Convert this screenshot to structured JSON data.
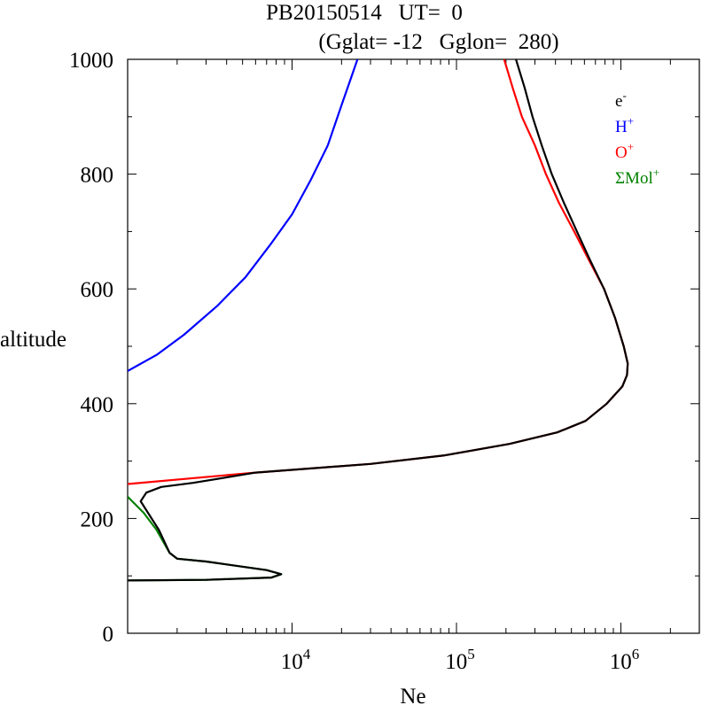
{
  "chart_data": {
    "type": "line",
    "title_line1": "PB20150514   UT=  0",
    "title_line2": "(Gglat= -12   Gglon=  280)",
    "xlabel": "Ne",
    "ylabel": "altitude",
    "xscale": "log",
    "xlim": [
      1000,
      3000000
    ],
    "ylim": [
      0,
      1000
    ],
    "x_ticks": [
      {
        "value": 10000,
        "base": "10",
        "exp": "4"
      },
      {
        "value": 100000,
        "base": "10",
        "exp": "5"
      },
      {
        "value": 1000000,
        "base": "10",
        "exp": "6"
      }
    ],
    "y_ticks": [
      {
        "value": 0,
        "label": "0"
      },
      {
        "value": 200,
        "label": "200"
      },
      {
        "value": 400,
        "label": "400"
      },
      {
        "value": 600,
        "label": "600"
      },
      {
        "value": 800,
        "label": "800"
      },
      {
        "value": 1000,
        "label": "1000"
      }
    ],
    "legend_position": "top-right",
    "legend": [
      {
        "base": "e",
        "sup": "-",
        "color": "#000000"
      },
      {
        "base": "H",
        "sup": "+",
        "color": "#0000ff"
      },
      {
        "base": "O",
        "sup": "+",
        "color": "#ff0000"
      },
      {
        "base": "ΣMol",
        "sup": "+",
        "color": "#008000"
      }
    ],
    "series": [
      {
        "key": "O+",
        "color": "#ff0000",
        "points": [
          [
            1000,
            260
          ],
          [
            6000,
            280
          ],
          [
            30000,
            295
          ],
          [
            85000,
            310
          ],
          [
            210000,
            330
          ],
          [
            410000,
            350
          ],
          [
            610000,
            370
          ],
          [
            820000,
            400
          ],
          [
            1020000,
            430
          ],
          [
            1090000,
            450
          ],
          [
            1100000,
            470
          ],
          [
            1040000,
            500
          ],
          [
            920000,
            550
          ],
          [
            790000,
            600
          ],
          [
            640000,
            650
          ],
          [
            520000,
            700
          ],
          [
            420000,
            750
          ],
          [
            350000,
            800
          ],
          [
            300000,
            850
          ],
          [
            250000,
            900
          ],
          [
            220000,
            950
          ],
          [
            195000,
            1000
          ]
        ]
      },
      {
        "key": "H+",
        "color": "#0000ff",
        "points": [
          [
            1000,
            457
          ],
          [
            1500,
            485
          ],
          [
            2200,
            520
          ],
          [
            3500,
            570
          ],
          [
            5200,
            620
          ],
          [
            7500,
            680
          ],
          [
            10000,
            730
          ],
          [
            13000,
            790
          ],
          [
            16500,
            850
          ],
          [
            20000,
            920
          ],
          [
            23000,
            970
          ],
          [
            25000,
            1000
          ]
        ]
      },
      {
        "key": "ΣMol+",
        "color": "#008000",
        "points": [
          [
            1000,
            92
          ],
          [
            3000,
            93
          ],
          [
            7500,
            97
          ],
          [
            8600,
            103
          ],
          [
            7000,
            110
          ],
          [
            3000,
            125
          ],
          [
            2000,
            130
          ],
          [
            1800,
            140
          ],
          [
            1500,
            180
          ],
          [
            1250,
            210
          ],
          [
            1000,
            238
          ]
        ]
      },
      {
        "key": "e-",
        "color": "#000000",
        "points": [
          [
            1000,
            92
          ],
          [
            3000,
            93
          ],
          [
            7500,
            97
          ],
          [
            8600,
            103
          ],
          [
            7000,
            110
          ],
          [
            3000,
            125
          ],
          [
            2000,
            130
          ],
          [
            1800,
            140
          ],
          [
            1550,
            180
          ],
          [
            1200,
            230
          ],
          [
            1300,
            245
          ],
          [
            1600,
            255
          ],
          [
            2500,
            262
          ],
          [
            6000,
            280
          ],
          [
            30000,
            295
          ],
          [
            85000,
            310
          ],
          [
            210000,
            330
          ],
          [
            410000,
            350
          ],
          [
            610000,
            370
          ],
          [
            820000,
            400
          ],
          [
            1020000,
            430
          ],
          [
            1090000,
            450
          ],
          [
            1100000,
            470
          ],
          [
            1040000,
            500
          ],
          [
            920000,
            550
          ],
          [
            790000,
            600
          ],
          [
            650000,
            650
          ],
          [
            540000,
            700
          ],
          [
            450000,
            750
          ],
          [
            380000,
            800
          ],
          [
            330000,
            850
          ],
          [
            290000,
            900
          ],
          [
            260000,
            950
          ],
          [
            230000,
            1000
          ]
        ]
      }
    ]
  }
}
